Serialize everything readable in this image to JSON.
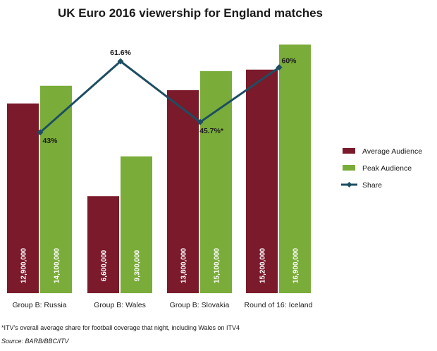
{
  "chart_data": {
    "type": "bar",
    "title": "UK Euro 2016 viewership for England matches",
    "categories": [
      "Group B: Russia",
      "Group B: Wales",
      "Group B: Slovakia",
      "Round of 16: Iceland"
    ],
    "series": [
      {
        "name": "Average Audience",
        "kind": "bar",
        "color": "#7b1a2b",
        "values": [
          12900000,
          6600000,
          13800000,
          15200000
        ],
        "labels": [
          "12,900,000",
          "6,600,000",
          "13,800,000",
          "15,200,000"
        ]
      },
      {
        "name": "Peak Audience",
        "kind": "bar",
        "color": "#7aac3a",
        "values": [
          14100000,
          9300000,
          15100000,
          16900000
        ],
        "labels": [
          "14,100,000",
          "9,300,000",
          "15,100,000",
          "16,900,000"
        ]
      },
      {
        "name": "Share",
        "kind": "line",
        "color": "#1d4e62",
        "values": [
          43,
          61.6,
          45.7,
          60
        ],
        "labels": [
          "43%",
          "61.6%",
          "45.7%*",
          "60%"
        ]
      }
    ],
    "legend_position": "right",
    "grid": false,
    "footnote": "*ITV's overall average share for football coverage that night, including Wales on ITV4",
    "source": "Source: BARB/BBC/ITV"
  }
}
